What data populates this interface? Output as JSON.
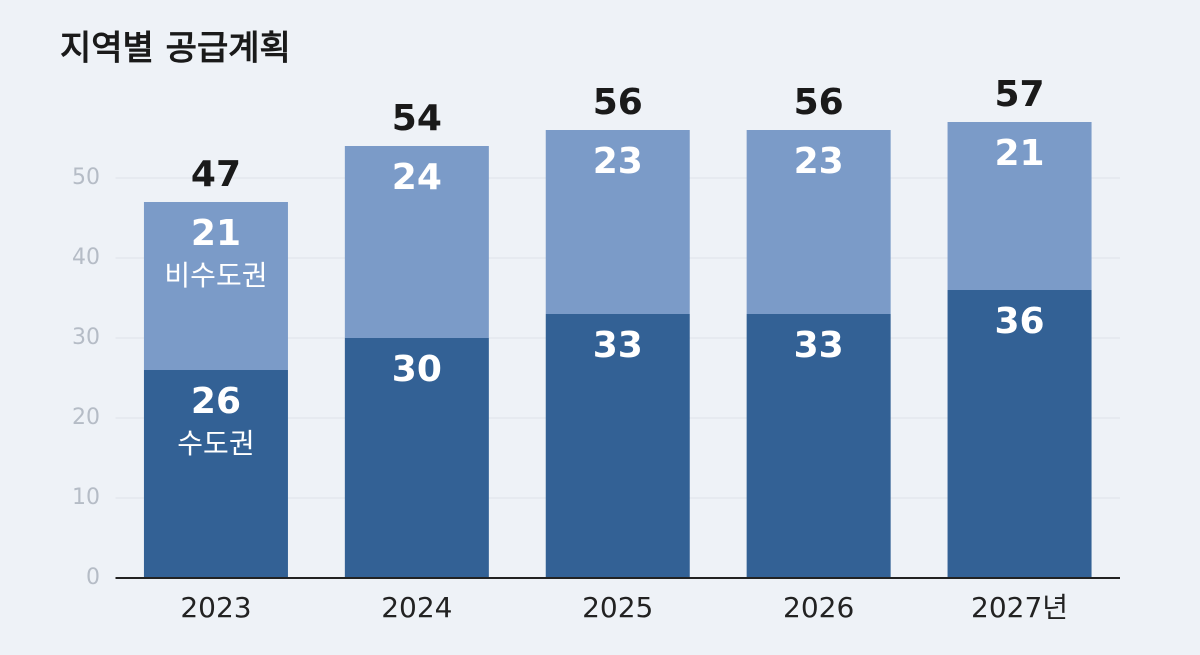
{
  "chart_data": {
    "type": "stacked_bar",
    "title": "지역별 공급계획",
    "categories": [
      "2023",
      "2024",
      "2025",
      "2026",
      "2027년"
    ],
    "series": [
      {
        "name": "수도권",
        "color": "#336195",
        "values": [
          26,
          30,
          33,
          33,
          36
        ]
      },
      {
        "name": "비수도권",
        "color": "#7b9bc8",
        "values": [
          21,
          24,
          23,
          23,
          21
        ]
      }
    ],
    "totals": [
      47,
      54,
      56,
      56,
      57
    ],
    "ylim": [
      0,
      60
    ],
    "yticks": [
      0,
      10,
      20,
      30,
      40,
      50
    ],
    "grid": true
  }
}
